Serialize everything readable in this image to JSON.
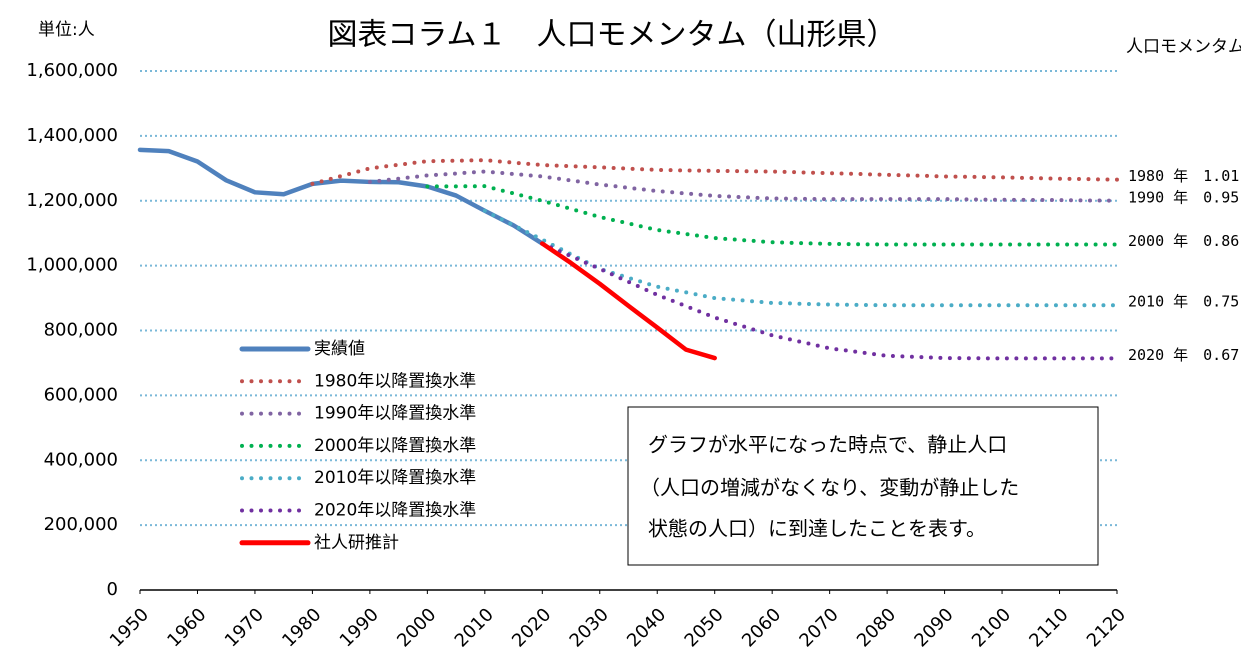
{
  "chart_data": {
    "type": "line",
    "title": "図表コラム１　人口モメンタム（山形県）",
    "y_unit": "単位:人",
    "right_header": "人口モメンタム",
    "annotation": [
      "グラフが水平になった時点で、静止人口",
      "（人口の増減がなくなり、変動が静止した",
      "状態の人口）に到達したことを表す。"
    ],
    "xlim": [
      1950,
      2120
    ],
    "xticks": [
      1950,
      1960,
      1970,
      1980,
      1990,
      2000,
      2010,
      2020,
      2030,
      2040,
      2050,
      2060,
      2070,
      2080,
      2090,
      2100,
      2110,
      2120
    ],
    "ylim": [
      0,
      1600000
    ],
    "yticks": [
      0,
      {
        "value": 200000,
        "label": "200,000"
      },
      {
        "value": 400000,
        "label": "400,000"
      },
      {
        "value": 600000,
        "label": "600,000"
      },
      {
        "value": 800000,
        "label": "800,000"
      },
      {
        "value": 1000000,
        "label": "1,000,000"
      },
      {
        "value": 1200000,
        "label": "1,200,000"
      },
      {
        "value": 1400000,
        "label": "1,400,000"
      },
      {
        "value": 1600000,
        "label": "1,600,000"
      }
    ],
    "grid": true,
    "series": [
      {
        "name": "実績値",
        "color": "#4f81bd",
        "style": "solid",
        "x": [
          1950,
          1955,
          1960,
          1965,
          1970,
          1975,
          1980,
          1985,
          1990,
          1995,
          2000,
          2005,
          2010,
          2015,
          2020
        ],
        "values": [
          1357000,
          1353000,
          1321000,
          1263000,
          1226000,
          1220000,
          1252000,
          1262000,
          1258000,
          1257000,
          1244000,
          1216000,
          1169000,
          1124000,
          1068000
        ]
      },
      {
        "name": "1980年以降置換水準",
        "color": "#c0504d",
        "style": "dotted",
        "momentum": "1980 年　1.01",
        "x": [
          1980,
          1990,
          2000,
          2010,
          2020,
          2030,
          2040,
          2050,
          2060,
          2070,
          2080,
          2090,
          2100,
          2110,
          2120
        ],
        "values": [
          1252000,
          1300000,
          1322000,
          1325000,
          1310000,
          1303000,
          1295000,
          1292000,
          1290000,
          1285000,
          1280000,
          1275000,
          1272000,
          1268000,
          1265000
        ]
      },
      {
        "name": "1990年以降置換水準",
        "color": "#8064a2",
        "style": "dotted",
        "momentum": "1990 年　0.95",
        "x": [
          1990,
          2000,
          2010,
          2020,
          2030,
          2040,
          2050,
          2060,
          2070,
          2080,
          2090,
          2100,
          2110,
          2120
        ],
        "values": [
          1258000,
          1278000,
          1290000,
          1275000,
          1250000,
          1230000,
          1215000,
          1207000,
          1205000,
          1205000,
          1205000,
          1203000,
          1202000,
          1200000
        ]
      },
      {
        "name": "2000年以降置換水準",
        "color": "#00b050",
        "style": "dotted",
        "momentum": "2000 年　0.86",
        "x": [
          2000,
          2010,
          2020,
          2030,
          2040,
          2050,
          2060,
          2070,
          2080,
          2090,
          2100,
          2110,
          2120
        ],
        "values": [
          1244000,
          1245000,
          1200000,
          1150000,
          1110000,
          1085000,
          1072000,
          1067000,
          1065000,
          1065000,
          1065000,
          1065000,
          1065000
        ]
      },
      {
        "name": "2010年以降置換水準",
        "color": "#4bacc6",
        "style": "dotted",
        "momentum": "2010 年　0.75",
        "x": [
          2010,
          2020,
          2030,
          2040,
          2050,
          2060,
          2070,
          2080,
          2090,
          2100,
          2110,
          2120
        ],
        "values": [
          1169000,
          1080000,
          990000,
          935000,
          900000,
          885000,
          880000,
          878000,
          878000,
          878000,
          878000,
          878000
        ]
      },
      {
        "name": "2020年以降置換水準",
        "color": "#7030a0",
        "style": "dotted",
        "momentum": "2020 年　0.67",
        "x": [
          2020,
          2030,
          2040,
          2050,
          2060,
          2070,
          2080,
          2090,
          2100,
          2110,
          2120
        ],
        "values": [
          1068000,
          990000,
          910000,
          840000,
          785000,
          745000,
          722000,
          715000,
          714000,
          714000,
          714000
        ]
      },
      {
        "name": "社人研推計",
        "color": "#ff0000",
        "style": "solid",
        "x": [
          2020,
          2025,
          2030,
          2035,
          2040,
          2045,
          2050
        ],
        "values": [
          1068000,
          1008000,
          944000,
          876000,
          809000,
          741000,
          715000
        ]
      }
    ]
  }
}
